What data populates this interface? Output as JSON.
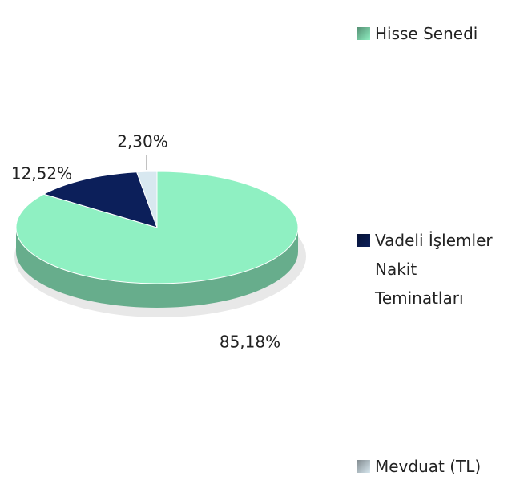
{
  "chart_data": {
    "type": "pie",
    "series": [
      {
        "name": "Hisse Senedi",
        "color": "#8ff0c2",
        "value": 85.18,
        "value_label": "85,18%"
      },
      {
        "name": "Vadeli İşlemler Nakit Teminatları",
        "color": "#0c1f5a",
        "value": 12.52,
        "value_label": "12,52%"
      },
      {
        "name": "Mevduat (TL)",
        "color": "#d8e8f0",
        "value": 2.3,
        "value_label": "2,30%"
      }
    ],
    "legend": "right",
    "style": "3d"
  }
}
